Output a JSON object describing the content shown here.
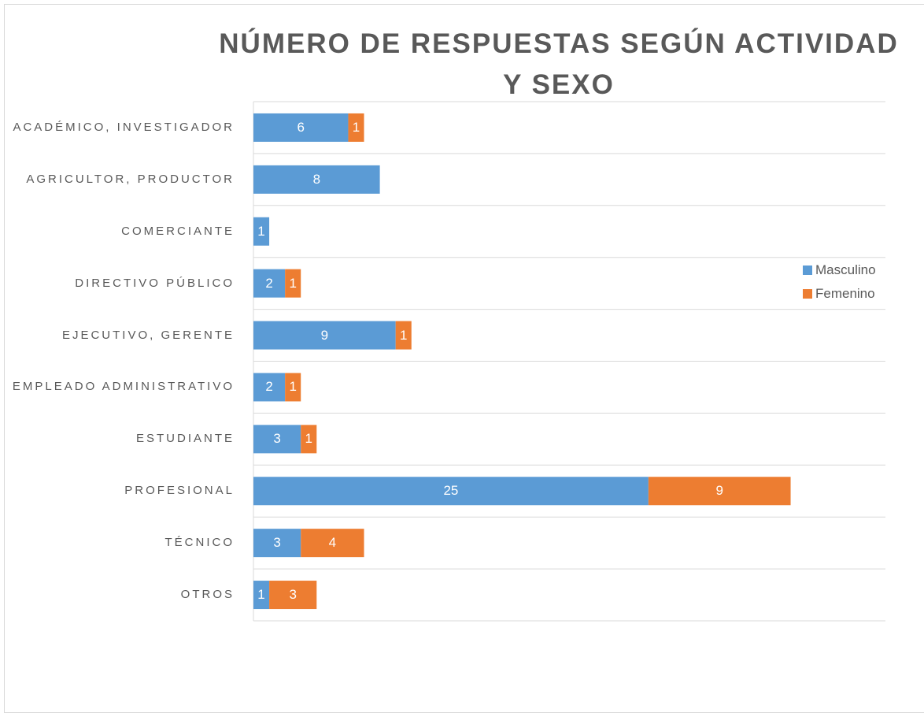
{
  "chart_data": {
    "type": "stacked-bar-horizontal",
    "title": "NÚMERO DE RESPUESTAS SEGÚN ACTIVIDAD Y SEXO",
    "categories": [
      "ACADÉMICO, INVESTIGADOR",
      "AGRICULTOR, PRODUCTOR",
      "COMERCIANTE",
      "DIRECTIVO PÚBLICO",
      "EJECUTIVO, GERENTE",
      "EMPLEADO ADMINISTRATIVO",
      "ESTUDIANTE",
      "PROFESIONAL",
      "TÉCNICO",
      "OTROS"
    ],
    "series": [
      {
        "name": "Masculino",
        "color": "#5b9bd5",
        "values": [
          6,
          8,
          1,
          2,
          9,
          2,
          3,
          25,
          3,
          1
        ]
      },
      {
        "name": "Femenino",
        "color": "#ed7d31",
        "values": [
          1,
          null,
          null,
          1,
          1,
          1,
          1,
          9,
          4,
          3
        ]
      }
    ],
    "xlim": [
      0,
      40
    ],
    "grid": true,
    "legend": "right"
  }
}
